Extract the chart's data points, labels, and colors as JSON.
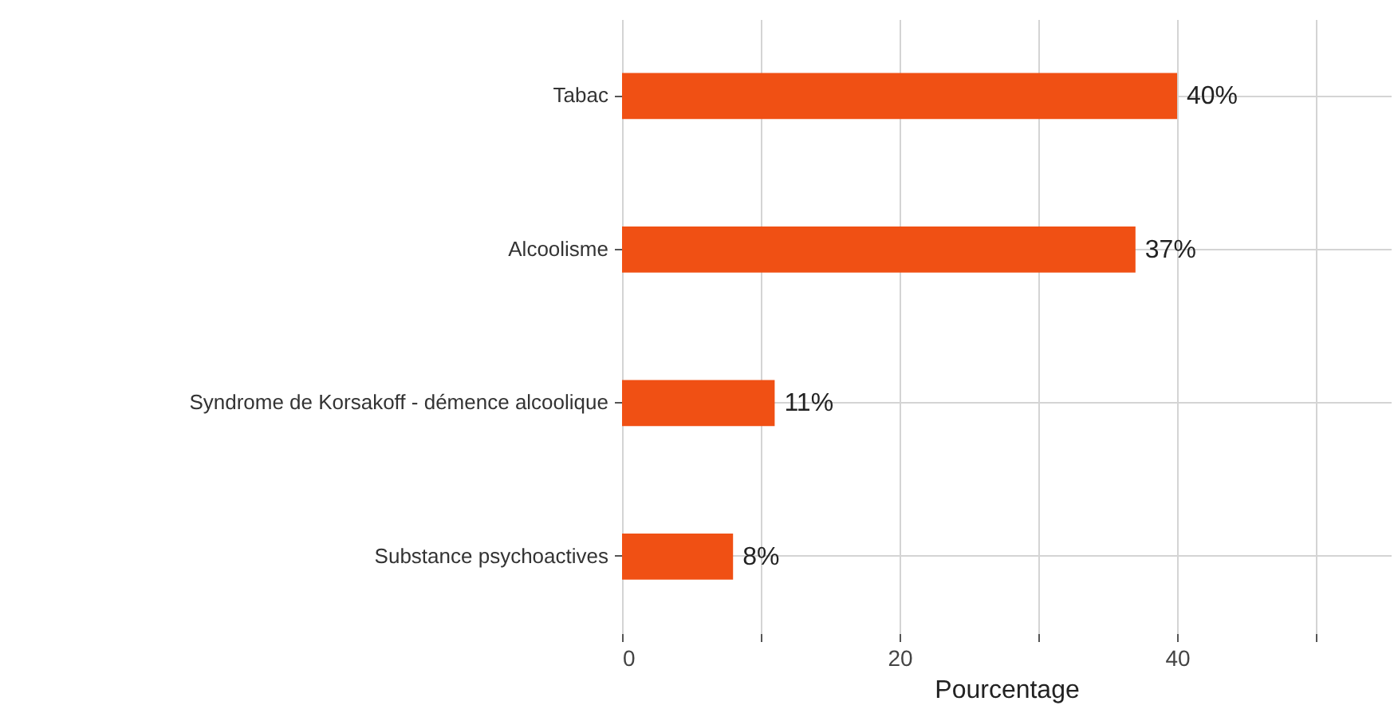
{
  "chart_data": {
    "type": "bar",
    "orientation": "horizontal",
    "xlabel": "Pourcentage",
    "categories": [
      "Tabac",
      "Alcoolisme",
      "Syndrome de Korsakoff - démence alcoolique",
      "Substance psychoactives"
    ],
    "values": [
      40,
      37,
      11,
      8
    ],
    "value_labels": [
      "40%",
      "37%",
      "11%",
      "8%"
    ],
    "color": "#f05014",
    "xlim": [
      0,
      55.4
    ],
    "xticks": [
      0,
      {
        "value": 10,
        "label": null
      },
      20,
      {
        "value": 30,
        "label": null
      },
      40,
      {
        "value": 50,
        "label": null
      }
    ],
    "grid": true
  }
}
